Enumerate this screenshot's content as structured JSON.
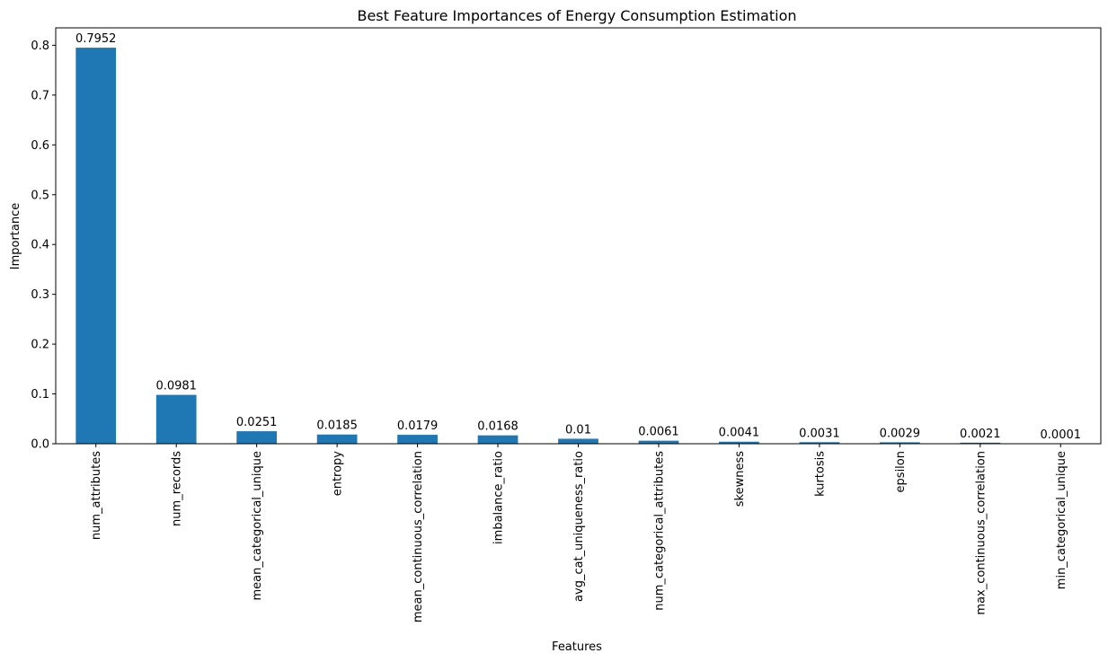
{
  "chart_data": {
    "type": "bar",
    "title": "Best Feature Importances of Energy Consumption Estimation",
    "xlabel": "Features",
    "ylabel": "Importance",
    "categories": [
      "num_attributes",
      "num_records",
      "mean_categorical_unique",
      "entropy",
      "mean_continuous_correlation",
      "imbalance_ratio",
      "avg_cat_uniqueness_ratio",
      "num_categorical_attributes",
      "skewness",
      "kurtosis",
      "epsilon",
      "max_continuous_correlation",
      "min_categorical_unique"
    ],
    "values": [
      0.7952,
      0.0981,
      0.0251,
      0.0185,
      0.0179,
      0.0168,
      0.01,
      0.0061,
      0.0041,
      0.0031,
      0.0029,
      0.0021,
      0.0001
    ],
    "data_labels": [
      "0.7952",
      "0.0981",
      "0.0251",
      "0.0185",
      "0.0179",
      "0.0168",
      "0.01",
      "0.0061",
      "0.0041",
      "0.0031",
      "0.0029",
      "0.0021",
      "0.0001"
    ],
    "yticks": [
      0.0,
      0.1,
      0.2,
      0.3,
      0.4,
      0.5,
      0.6,
      0.7,
      0.8
    ],
    "ytick_labels": [
      "0.0",
      "0.1",
      "0.2",
      "0.3",
      "0.4",
      "0.5",
      "0.6",
      "0.7",
      "0.8"
    ],
    "ylim": [
      0,
      0.835
    ],
    "grid": false,
    "legend": false,
    "bar_color": "#1f77b4"
  }
}
